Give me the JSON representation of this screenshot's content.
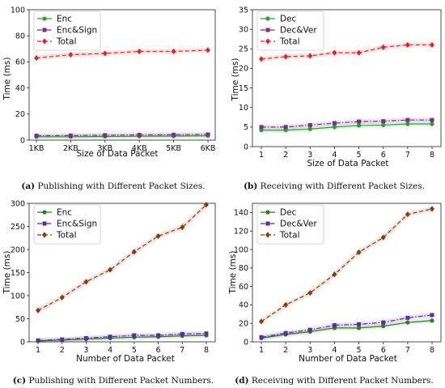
{
  "chart_data": [
    {
      "type": "line",
      "id": "a",
      "caption_label": "(a)",
      "caption_text": " Publishing with Different Packet Sizes.",
      "xlabel": "Size of Data Packet",
      "ylabel": "Time (ms)",
      "categories": [
        "1KB",
        "2KB",
        "3KB",
        "4KB",
        "5KB",
        "6KB"
      ],
      "ylim": [
        0,
        100
      ],
      "yticks": [
        0,
        20,
        40,
        60,
        80,
        100
      ],
      "legend_position": "top-left",
      "series": [
        {
          "name": "Enc",
          "color": "#2ca02c",
          "marker": "circle",
          "dash": "solid",
          "values": [
            2.6,
            2.6,
            2.8,
            3.0,
            3.1,
            3.3
          ]
        },
        {
          "name": "Enc&Sign",
          "color": "#7b2d8e",
          "marker": "square",
          "dash": "dashdot",
          "values": [
            3.4,
            3.5,
            3.8,
            4.0,
            4.1,
            4.4
          ]
        },
        {
          "name": "Total",
          "color": "#e8231e",
          "marker": "diamond",
          "dash": "dashed",
          "values": [
            63,
            65.5,
            66.5,
            68,
            68,
            69
          ]
        }
      ]
    },
    {
      "type": "line",
      "id": "b",
      "caption_label": "(b)",
      "caption_text": " Receiving with Different Packet Sizes.",
      "xlabel": "Size of Data Packet",
      "ylabel": "Time (ms)",
      "categories": [
        "1",
        "2",
        "3",
        "4",
        "5",
        "6",
        "7",
        "8"
      ],
      "ylim": [
        0,
        35
      ],
      "yticks": [
        0,
        5,
        10,
        15,
        20,
        25,
        30,
        35
      ],
      "legend_position": "top-left",
      "series": [
        {
          "name": "Dec",
          "color": "#2ca02c",
          "marker": "circle",
          "dash": "solid",
          "values": [
            4.2,
            4.2,
            4.5,
            5.0,
            5.4,
            5.5,
            5.8,
            5.8
          ]
        },
        {
          "name": "Dec&Ver",
          "color": "#7b2d8e",
          "marker": "square",
          "dash": "dashdot",
          "values": [
            5.0,
            5.0,
            5.5,
            6.0,
            6.4,
            6.5,
            6.8,
            6.8
          ]
        },
        {
          "name": "Total",
          "color": "#e8231e",
          "marker": "diamond",
          "dash": "dashed",
          "values": [
            22.4,
            23.0,
            23.2,
            24.0,
            24.0,
            25.4,
            26.0,
            26.0
          ]
        }
      ]
    },
    {
      "type": "line",
      "id": "c",
      "caption_label": "(c)",
      "caption_text": " Publishing with Different Packet Numbers.",
      "xlabel": "Number of Data Packet",
      "ylabel": "Time (ms)",
      "categories": [
        "1",
        "2",
        "3",
        "4",
        "5",
        "6",
        "7",
        "8"
      ],
      "ylim": [
        0,
        300
      ],
      "yticks": [
        0,
        50,
        100,
        150,
        200,
        250,
        300
      ],
      "legend_position": "top-left",
      "series": [
        {
          "name": "Enc",
          "color": "#2e7d1f",
          "marker": "circle",
          "dash": "solid",
          "values": [
            2,
            4,
            6,
            8,
            10,
            11,
            13,
            14
          ]
        },
        {
          "name": "Enc&Sign",
          "color": "#5a2d9c",
          "marker": "square",
          "dash": "dashdot",
          "values": [
            3,
            5,
            8,
            11,
            14,
            14,
            17,
            18
          ]
        },
        {
          "name": "Total",
          "color": "#8b3a0f",
          "marker": "diamond",
          "dash": "dashed",
          "values": [
            68,
            96,
            130,
            156,
            195,
            229,
            248,
            297
          ]
        }
      ]
    },
    {
      "type": "line",
      "id": "d",
      "caption_label": "(d)",
      "caption_text": " Receiving with Different Packet Numbers.",
      "xlabel": "Number of Data Packet",
      "ylabel": "Time (ms)",
      "categories": [
        "1",
        "2",
        "3",
        "4",
        "5",
        "6",
        "7",
        "8"
      ],
      "ylim": [
        0,
        150
      ],
      "yticks": [
        0,
        20,
        40,
        60,
        80,
        100,
        120,
        140
      ],
      "legend_position": "top-left",
      "series": [
        {
          "name": "Dec",
          "color": "#2e7d1f",
          "marker": "circle",
          "dash": "solid",
          "values": [
            4,
            8,
            11,
            15,
            15,
            17,
            21,
            23
          ]
        },
        {
          "name": "Dec&Ver",
          "color": "#5a2d9c",
          "marker": "square",
          "dash": "dashdot",
          "values": [
            5,
            9.5,
            13,
            18,
            19,
            21,
            26,
            29
          ]
        },
        {
          "name": "Total",
          "color": "#8b3a0f",
          "marker": "diamond",
          "dash": "dashed",
          "values": [
            22,
            40,
            53,
            73,
            97,
            113,
            138,
            144
          ]
        }
      ]
    }
  ]
}
